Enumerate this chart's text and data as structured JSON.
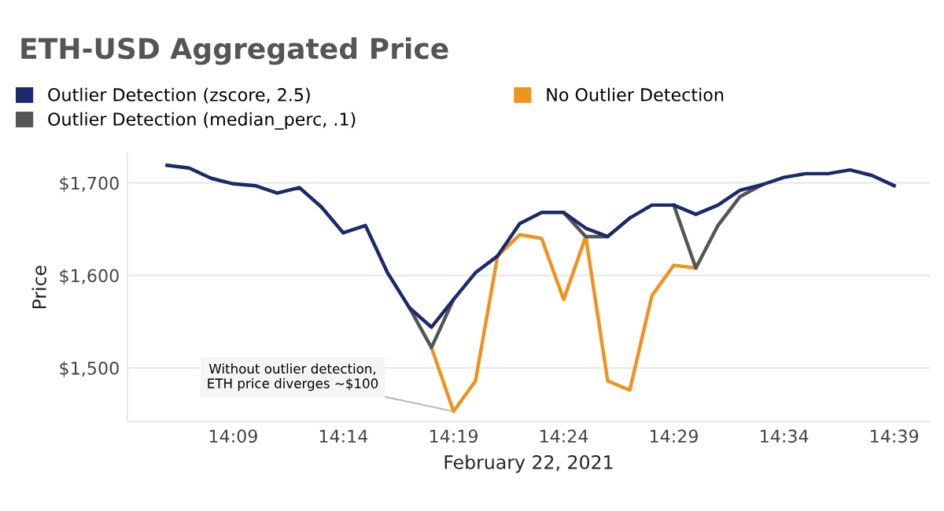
{
  "chart_data": {
    "type": "line",
    "title": "ETH-USD Aggregated Price",
    "xlabel": "February 22, 2021",
    "ylabel": "Price",
    "x": [
      14.1,
      14.1167,
      14.1333,
      14.15,
      14.1667,
      14.1833,
      14.2,
      14.2167,
      14.2333,
      14.25,
      14.2667,
      14.2833,
      14.3,
      14.3167,
      14.3333,
      14.35,
      14.3667,
      14.3833,
      14.4,
      14.4167,
      14.4333,
      14.45,
      14.4667,
      14.4833,
      14.5,
      14.5167,
      14.5333,
      14.55,
      14.5667,
      14.5833,
      14.6,
      14.6167,
      14.6333,
      14.65
    ],
    "series": [
      {
        "name": "Outlier Detection (zscore, 2.5)",
        "color": "#1b2a6b",
        "values": [
          1719,
          1716,
          1705,
          1699,
          1697,
          1689,
          1695,
          1674,
          1646,
          1654,
          1603,
          1565,
          1544,
          1574,
          1603,
          1621,
          1656,
          1668,
          1668,
          1651,
          1642,
          1662,
          1676,
          1676,
          1666,
          1676,
          1692,
          1698,
          1706,
          1710,
          1710,
          1714,
          1708,
          1697
        ]
      },
      {
        "name": "Outlier Detection (median_perc, .1)",
        "color": "#555555",
        "values": [
          null,
          null,
          null,
          null,
          null,
          null,
          null,
          null,
          null,
          null,
          null,
          1565,
          1522,
          1574,
          null,
          null,
          null,
          null,
          1668,
          1642,
          1642,
          1662,
          null,
          1676,
          1608,
          1654,
          1685,
          1698,
          null,
          null,
          null,
          null,
          null,
          null
        ]
      },
      {
        "name": "No Outlier Detection",
        "color": "#f0921e",
        "values": [
          null,
          null,
          null,
          null,
          null,
          null,
          null,
          null,
          null,
          null,
          null,
          null,
          1522,
          1453,
          1486,
          1621,
          1644,
          1640,
          1574,
          1642,
          1486,
          1476,
          1578,
          1611,
          1608,
          null,
          null,
          null,
          null,
          null,
          null,
          null,
          null,
          null
        ]
      }
    ],
    "xlim": [
      14.07,
      14.677
    ],
    "xticks": [
      {
        "value": 14.15,
        "label": "14:09"
      },
      {
        "value": 14.2333,
        "label": "14:14"
      },
      {
        "value": 14.3167,
        "label": "14:19"
      },
      {
        "value": 14.4,
        "label": "14:24"
      },
      {
        "value": 14.4833,
        "label": "14:29"
      },
      {
        "value": 14.5667,
        "label": "14:34"
      },
      {
        "value": 14.65,
        "label": "14:39"
      }
    ],
    "ylim": [
      1442,
      1732
    ],
    "yticks": [
      {
        "value": 1500,
        "label": "$1,500"
      },
      {
        "value": 1600,
        "label": "$1,600"
      },
      {
        "value": 1700,
        "label": "$1,700"
      }
    ],
    "grid": "y",
    "legend": "top left",
    "marker": "none",
    "line_style": "solid",
    "annotations": [
      {
        "text": "Without outlier detection,\nETH price diverges ~$100",
        "x": 14.3167,
        "y": 1453
      }
    ]
  }
}
